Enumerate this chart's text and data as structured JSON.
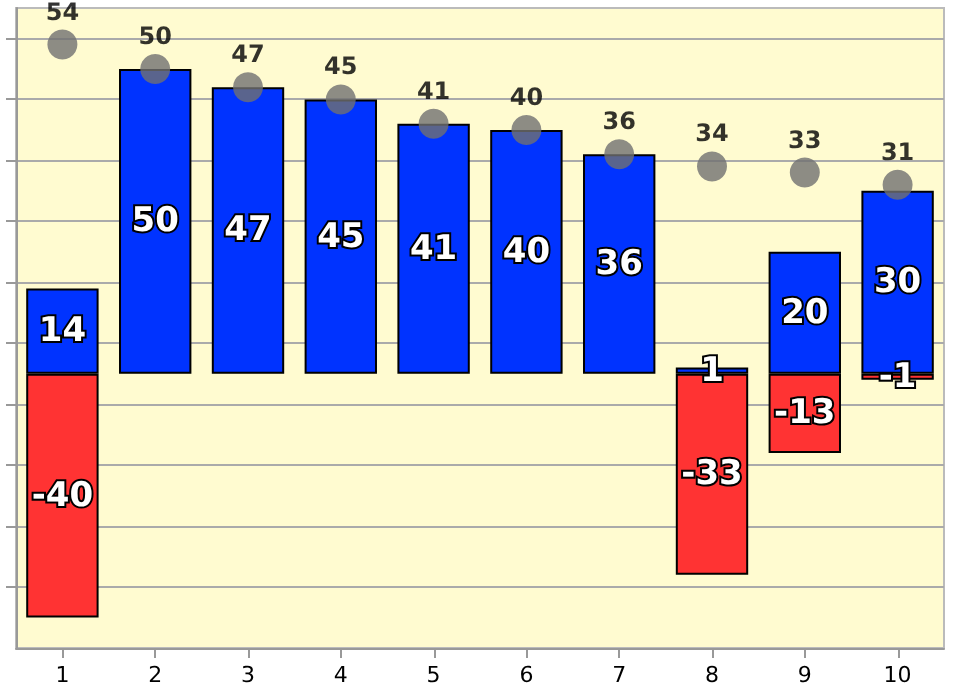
{
  "chart_data": {
    "type": "bar",
    "stacked": true,
    "categories": [
      "1",
      "2",
      "3",
      "4",
      "5",
      "6",
      "7",
      "8",
      "9",
      "10"
    ],
    "series": [
      {
        "color": "#0033ff",
        "values": [
          14,
          50,
          47,
          45,
          41,
          40,
          36,
          1,
          20,
          30
        ]
      },
      {
        "color": "#ff3333",
        "values": [
          -40,
          null,
          null,
          null,
          null,
          null,
          null,
          -33,
          -13,
          -1
        ]
      },
      {
        "type": "scatter",
        "color": "#707070",
        "marker": "circle",
        "x": [
          "1",
          "2",
          "3",
          "4",
          "5",
          "6",
          "7",
          "8",
          "9",
          "10"
        ],
        "values": [
          54,
          50,
          47,
          45,
          41,
          40,
          36,
          34,
          33,
          31
        ]
      }
    ],
    "ylim": [
      -45,
      60
    ],
    "yticks": [
      {
        "value": -35,
        "label": null
      },
      {
        "value": -25,
        "label": null
      },
      {
        "value": -15,
        "label": null
      },
      {
        "value": -5,
        "label": null
      },
      {
        "value": 5,
        "label": null
      },
      {
        "value": 15,
        "label": null
      },
      {
        "value": 25,
        "label": null
      },
      {
        "value": 35,
        "label": null
      },
      {
        "value": 45,
        "label": null
      },
      {
        "value": 55,
        "label": null
      }
    ],
    "grid": "y",
    "tick_labels": "x",
    "data_labels": true
  }
}
